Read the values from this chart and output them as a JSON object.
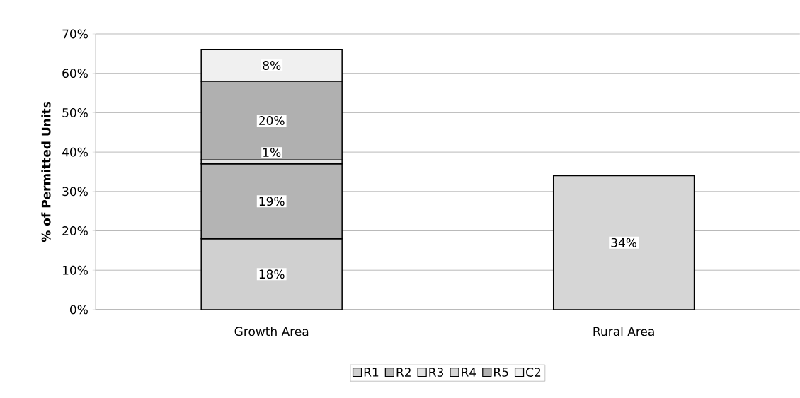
{
  "chart_data": {
    "type": "bar",
    "stacked": true,
    "ylabel": "% of Permitted Units",
    "categories": [
      "Growth Area",
      "Rural Area"
    ],
    "series": [
      {
        "name": "R1",
        "color": "#d0d0d0",
        "values": [
          18,
          null
        ],
        "value_labels": [
          "18%",
          null
        ]
      },
      {
        "name": "R2",
        "color": "#b4b4b4",
        "values": [
          19,
          null
        ],
        "value_labels": [
          "19%",
          null
        ]
      },
      {
        "name": "R3",
        "color": "#e2e2e2",
        "values": [
          1,
          null
        ],
        "value_labels": [
          "1%",
          null
        ]
      },
      {
        "name": "R4",
        "color": "#d6d6d6",
        "values": [
          null,
          34
        ],
        "value_labels": [
          null,
          "34%"
        ]
      },
      {
        "name": "R5",
        "color": "#b0b0b0",
        "values": [
          20,
          null
        ],
        "value_labels": [
          "20%",
          null
        ]
      },
      {
        "name": "C2",
        "color": "#f0f0f0",
        "values": [
          8,
          null
        ],
        "value_labels": [
          "8%",
          null
        ]
      }
    ],
    "ylim": [
      0,
      70
    ],
    "yticks": [
      {
        "value": 0,
        "label": "0%"
      },
      {
        "value": 10,
        "label": "10%"
      },
      {
        "value": 20,
        "label": "20%"
      },
      {
        "value": 30,
        "label": "30%"
      },
      {
        "value": 40,
        "label": "40%"
      },
      {
        "value": 50,
        "label": "50%"
      },
      {
        "value": 60,
        "label": "60%"
      },
      {
        "value": 70,
        "label": "70%"
      }
    ],
    "grid": "y",
    "legend": "bottom"
  }
}
